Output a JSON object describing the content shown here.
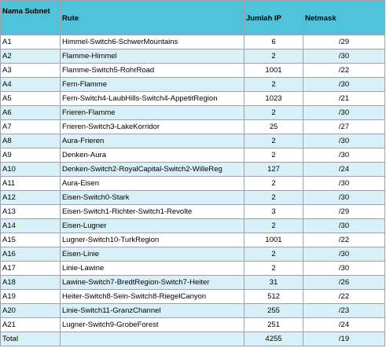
{
  "headers": {
    "subnet": "Nama Subnet",
    "rute": "Rute",
    "ip": "Jumlah IP",
    "netmask": "Netmask"
  },
  "rows": [
    {
      "subnet": "A1",
      "rute": "Himmel-Switch6-SchwerMountains",
      "ip": "6",
      "netmask": "/29"
    },
    {
      "subnet": "A2",
      "rute": "Flamme-Himmel",
      "ip": "2",
      "netmask": "/30"
    },
    {
      "subnet": "A3",
      "rute": "Flamme-Switch5-RohrRoad",
      "ip": "1001",
      "netmask": "/22"
    },
    {
      "subnet": "A4",
      "rute": "Fern-Flamme",
      "ip": "2",
      "netmask": "/30"
    },
    {
      "subnet": "A5",
      "rute": "Fern-Switch4-LaubHills-Switch4-AppetitRegion",
      "ip": "1023",
      "netmask": "/21"
    },
    {
      "subnet": "A6",
      "rute": "Frieren-Flamme",
      "ip": "2",
      "netmask": "/30"
    },
    {
      "subnet": "A7",
      "rute": "Frieren-Switch3-LakeKorridor",
      "ip": "25",
      "netmask": "/27"
    },
    {
      "subnet": "A8",
      "rute": "Aura-Frieren",
      "ip": "2",
      "netmask": "/30"
    },
    {
      "subnet": "A9",
      "rute": "Denken-Aura",
      "ip": "2",
      "netmask": "/30"
    },
    {
      "subnet": "A10",
      "rute": "Denken-Switch2-RoyalCapital-Switch2-WilleReg",
      "ip": "127",
      "netmask": "/24"
    },
    {
      "subnet": "A11",
      "rute": "Aura-Eisen",
      "ip": "2",
      "netmask": "/30"
    },
    {
      "subnet": "A12",
      "rute": "Eisen-Switch0-Stark",
      "ip": "2",
      "netmask": "/30"
    },
    {
      "subnet": "A13",
      "rute": "Eisen-Switch1-Richter-Switch1-Revolte",
      "ip": "3",
      "netmask": "/29"
    },
    {
      "subnet": "A14",
      "rute": "Eisen-Lugner",
      "ip": "2",
      "netmask": "/30"
    },
    {
      "subnet": "A15",
      "rute": "Lugner-Switch10-TurkRegion",
      "ip": "1001",
      "netmask": "/22"
    },
    {
      "subnet": "A16",
      "rute": "Eisen-Linie",
      "ip": "2",
      "netmask": "/30"
    },
    {
      "subnet": "A17",
      "rute": "Linie-Lawine",
      "ip": "2",
      "netmask": "/30"
    },
    {
      "subnet": "A18",
      "rute": "Lawine-Switch7-BredtRegion-Switch7-Heiter",
      "ip": "31",
      "netmask": "/26"
    },
    {
      "subnet": "A19",
      "rute": "Heiter-Switch8-Sein-Switch8-RiegelCanyon",
      "ip": "512",
      "netmask": "/22"
    },
    {
      "subnet": "A20",
      "rute": "Linie-Switch11-GranzChannel",
      "ip": "255",
      "netmask": "/23"
    },
    {
      "subnet": "A21",
      "rute": "Lugner-Switch9-GrobeForest",
      "ip": "251",
      "netmask": "/24"
    }
  ],
  "total": {
    "label": "Total",
    "rute": "",
    "ip": "4255",
    "netmask": "/19"
  }
}
